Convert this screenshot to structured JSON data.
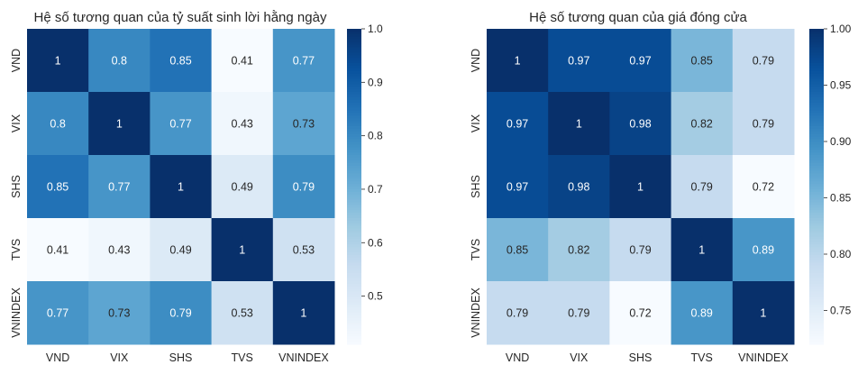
{
  "chart_data": [
    {
      "type": "heatmap",
      "title": "Hệ số tương quan của tỷ suất sinh lời hằng ngày",
      "x_categories": [
        "VND",
        "VIX",
        "SHS",
        "TVS",
        "VNINDEX"
      ],
      "y_categories": [
        "VND",
        "VIX",
        "SHS",
        "TVS",
        "VNINDEX"
      ],
      "values": [
        [
          1,
          0.8,
          0.85,
          0.41,
          0.77
        ],
        [
          0.8,
          1,
          0.77,
          0.43,
          0.73
        ],
        [
          0.85,
          0.77,
          1,
          0.49,
          0.79
        ],
        [
          0.41,
          0.43,
          0.49,
          1,
          0.53
        ],
        [
          0.77,
          0.73,
          0.79,
          0.53,
          1
        ]
      ],
      "value_labels": [
        [
          "1",
          "0.8",
          "0.85",
          "0.41",
          "0.77"
        ],
        [
          "0.8",
          "1",
          "0.77",
          "0.43",
          "0.73"
        ],
        [
          "0.85",
          "0.77",
          "1",
          "0.49",
          "0.79"
        ],
        [
          "0.41",
          "0.43",
          "0.49",
          "1",
          "0.53"
        ],
        [
          "0.77",
          "0.73",
          "0.79",
          "0.53",
          "1"
        ]
      ],
      "colormap": "Blues",
      "color_range": [
        0.41,
        1.0
      ],
      "colorbar_ticks": [
        0.5,
        0.6,
        0.7,
        0.8,
        0.9,
        1.0
      ],
      "colorbar_tick_labels": [
        "0.5",
        "0.6",
        "0.7",
        "0.8",
        "0.9",
        "1.0"
      ]
    },
    {
      "type": "heatmap",
      "title": "Hệ số tương quan của giá đóng cửa",
      "x_categories": [
        "VND",
        "VIX",
        "SHS",
        "TVS",
        "VNINDEX"
      ],
      "y_categories": [
        "VND",
        "VIX",
        "SHS",
        "TVS",
        "VNINDEX"
      ],
      "values": [
        [
          1,
          0.97,
          0.97,
          0.85,
          0.79
        ],
        [
          0.97,
          1,
          0.98,
          0.82,
          0.79
        ],
        [
          0.97,
          0.98,
          1,
          0.79,
          0.72
        ],
        [
          0.85,
          0.82,
          0.79,
          1,
          0.89
        ],
        [
          0.79,
          0.79,
          0.72,
          0.89,
          1
        ]
      ],
      "value_labels": [
        [
          "1",
          "0.97",
          "0.97",
          "0.85",
          "0.79"
        ],
        [
          "0.97",
          "1",
          "0.98",
          "0.82",
          "0.79"
        ],
        [
          "0.97",
          "0.98",
          "1",
          "0.79",
          "0.72"
        ],
        [
          "0.85",
          "0.82",
          "0.79",
          "1",
          "0.89"
        ],
        [
          "0.79",
          "0.79",
          "0.72",
          "0.89",
          "1"
        ]
      ],
      "colormap": "Blues",
      "color_range": [
        0.72,
        1.0
      ],
      "colorbar_ticks": [
        0.75,
        0.8,
        0.85,
        0.9,
        0.95,
        1.0
      ],
      "colorbar_tick_labels": [
        "0.75",
        "0.80",
        "0.85",
        "0.90",
        "0.95",
        "1.00"
      ]
    }
  ]
}
